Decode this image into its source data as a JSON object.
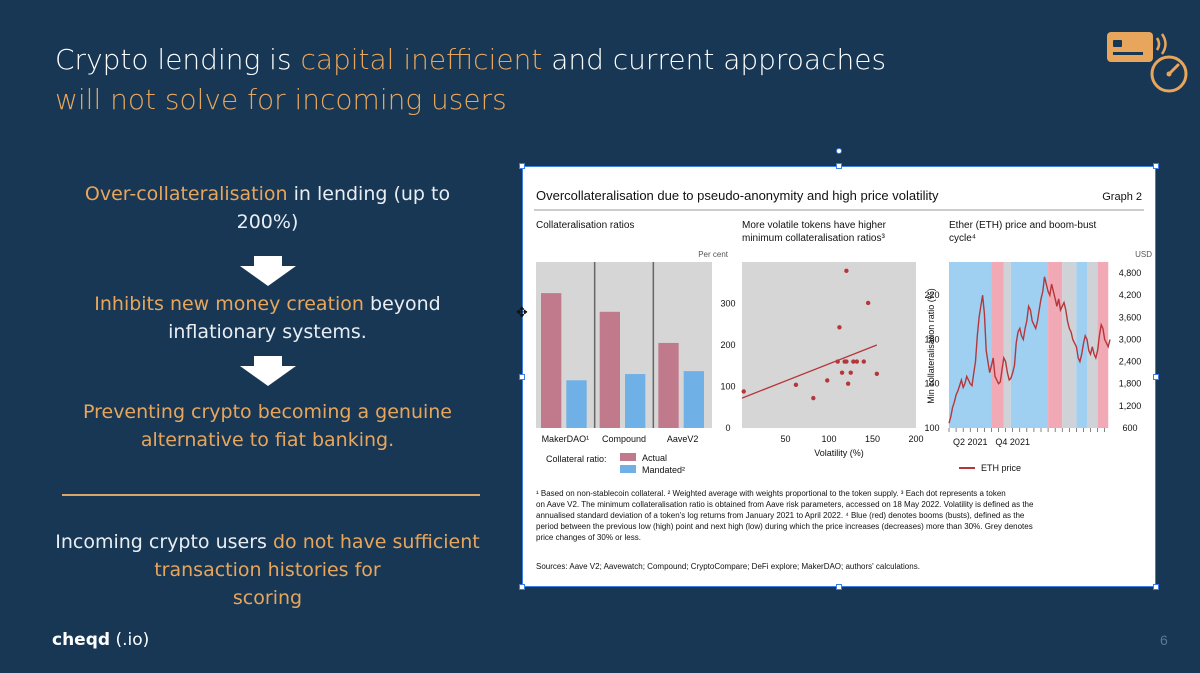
{
  "slide": {
    "title_line1_a": "Crypto lending is ",
    "title_line1_accent": "capital inefficient",
    "title_line1_b": " and current approaches",
    "title_line2_accent": "will not solve for incoming users",
    "points": [
      {
        "accent": "Over-collateralisation",
        "text": " in lending (up to 200%)"
      },
      {
        "accent": "Inhibits new money creation",
        "text": " beyond inflationary systems."
      },
      {
        "accent": "Preventing crypto becoming a genuine alternative to fiat banking.",
        "text": ""
      }
    ],
    "bottom_a": "Incoming crypto users ",
    "bottom_accent": "do not have sufficient transaction histories for",
    "bottom_b": "scoring",
    "brand_name": "cheqd",
    "brand_suffix": "(.io)",
    "page_number": "6",
    "colors": {
      "background": "#173755",
      "accent": "#e8a65c"
    },
    "icons": [
      "credit-card-icon",
      "speedometer-icon",
      "down-arrow-icon",
      "move-cursor-icon"
    ]
  },
  "figure": {
    "title": "Overcollateralisation due to pseudo-anonymity and high price volatility",
    "graph_label": "Graph 2",
    "footnotes": [
      "¹ Based on non-stablecoin collateral.   ² Weighted average with weights proportional to the token supply.   ³ Each dot represents a token",
      "on Aave V2. The minimum collateralisation ratio is obtained from Aave risk parameters, accessed on 18 May 2022. Volatility is defined as the",
      "annualised standard deviation of a token's log returns from January 2021 to April 2022.  ⁴ Blue (red) denotes booms (busts), defined as the",
      "period between the previous low (high) point and next high (low) during which the price increases (decreases) more than 30%. Grey denotes",
      "price changes of 30% or less."
    ],
    "sources": "Sources: Aave V2; Aavewatch; Compound; CryptoCompare; DeFi explore; MakerDAO; authors' calculations."
  },
  "chart_data": [
    {
      "type": "bar",
      "title": "Collateralisation ratios",
      "ylabel": "Per cent",
      "ylim": [
        0,
        400
      ],
      "yticks": [
        "0",
        "100",
        "200",
        "300"
      ],
      "categories": [
        "MakerDAO¹",
        "Compound",
        "AaveV2"
      ],
      "legend_title": "Collateral ratio:",
      "series": [
        {
          "name": "Actual",
          "values": [
            325,
            280,
            205
          ],
          "color": "#c17a8b"
        },
        {
          "name": "Mandated²",
          "values": [
            115,
            130,
            137
          ],
          "color": "#6fb0e6"
        }
      ]
    },
    {
      "type": "scatter",
      "title": "More volatile tokens have higher minimum collateralisation ratios³",
      "xlabel": "Volatility (%)",
      "ylabel": "Min collateralisation ratio (%)",
      "xlim": [
        0,
        200
      ],
      "ylim": [
        100,
        250
      ],
      "xticks": [
        "50",
        "100",
        "150",
        "200"
      ],
      "yticks": [
        "100",
        "140",
        "180",
        "220"
      ],
      "points": [
        {
          "x": 2,
          "y": 133
        },
        {
          "x": 62,
          "y": 139
        },
        {
          "x": 82,
          "y": 127
        },
        {
          "x": 98,
          "y": 143
        },
        {
          "x": 110,
          "y": 160
        },
        {
          "x": 112,
          "y": 191
        },
        {
          "x": 115,
          "y": 150
        },
        {
          "x": 118,
          "y": 160
        },
        {
          "x": 120,
          "y": 160
        },
        {
          "x": 122,
          "y": 140
        },
        {
          "x": 125,
          "y": 150
        },
        {
          "x": 128,
          "y": 160
        },
        {
          "x": 132,
          "y": 160
        },
        {
          "x": 140,
          "y": 160
        },
        {
          "x": 145,
          "y": 213
        },
        {
          "x": 155,
          "y": 149
        },
        {
          "x": 120,
          "y": 242
        }
      ],
      "trendline": [
        {
          "x": 0,
          "y": 127
        },
        {
          "x": 155,
          "y": 175
        }
      ]
    },
    {
      "type": "line",
      "title": "Ether (ETH) price and boom-bust cycle⁴",
      "ylabel": "USD",
      "ylim": [
        600,
        5100
      ],
      "yticks": [
        "600",
        "1,200",
        "1,800",
        "2,400",
        "3,000",
        "3,600",
        "4,200",
        "4,800"
      ],
      "xtick_labels": [
        "Q2 2021",
        "Q4 2021"
      ],
      "legend": "ETH price",
      "series_color": "#b5373a",
      "values": [
        730,
        900,
        1150,
        1300,
        1500,
        1600,
        1750,
        1900,
        1700,
        1800,
        2000,
        1900,
        1800,
        1750,
        2100,
        2400,
        3100,
        3600,
        3900,
        4200,
        3700,
        2700,
        2400,
        2100,
        2300,
        2500,
        2000,
        1900,
        1800,
        1850,
        2200,
        2500,
        2400,
        2100,
        1900,
        1950,
        2100,
        2300,
        2900,
        3200,
        3300,
        3100,
        3000,
        3300,
        3500,
        3900,
        3800,
        3500,
        3400,
        3300,
        3500,
        3800,
        4100,
        4300,
        4700,
        4500,
        4300,
        4200,
        4500,
        4300,
        4100,
        3900,
        4100,
        3800,
        3900,
        4000,
        3800,
        3500,
        3300,
        3200,
        3000,
        2900,
        2800,
        2500,
        2400,
        2600,
        2900,
        3100,
        3000,
        2700,
        2600,
        2800,
        2600,
        2500,
        2700,
        3100,
        3400,
        3300,
        3000,
        2900,
        2800,
        3000
      ],
      "regimes": [
        {
          "from": 0,
          "to": 24,
          "label": "boom"
        },
        {
          "from": 24,
          "to": 31,
          "label": "bust"
        },
        {
          "from": 31,
          "to": 35,
          "label": "flat"
        },
        {
          "from": 35,
          "to": 56,
          "label": "boom"
        },
        {
          "from": 56,
          "to": 64,
          "label": "bust"
        },
        {
          "from": 64,
          "to": 72,
          "label": "flat"
        },
        {
          "from": 72,
          "to": 78,
          "label": "boom"
        },
        {
          "from": 78,
          "to": 84,
          "label": "flat"
        },
        {
          "from": 84,
          "to": 90,
          "label": "bust"
        }
      ],
      "regime_colors": {
        "boom": "#9fd0f2",
        "bust": "#f2a9b6",
        "flat": "#cfd3d8"
      }
    }
  ]
}
